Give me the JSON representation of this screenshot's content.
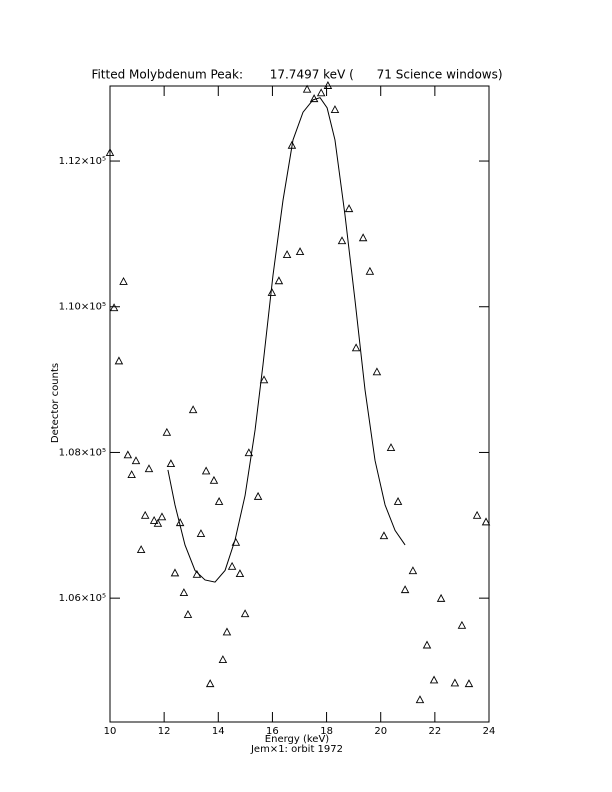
{
  "chart_data": {
    "type": "scatter",
    "title": "Fitted Molybdenum Peak:       17.7497 keV (      71 Science windows)",
    "x_label": "Energy (keV)",
    "y_label": "Detector counts",
    "subtitle": "Jem×1: orbit 1972",
    "xlim": [
      10,
      24
    ],
    "xticks": [
      10,
      12,
      14,
      16,
      18,
      20,
      22,
      24
    ],
    "ylim": [
      104300,
      113030
    ],
    "yticks": [
      {
        "value": 106000,
        "label": "1.06×10⁵"
      },
      {
        "value": 108000,
        "label": "1.08×10⁵"
      },
      {
        "value": 110000,
        "label": "1.10×10⁵"
      },
      {
        "value": 112000,
        "label": "1.12×10⁵"
      }
    ],
    "series": [
      {
        "color": "#000000",
        "marker": "triangle",
        "x": [
          10.0,
          10.15,
          10.33,
          10.5,
          10.66,
          10.8,
          10.96,
          11.15,
          11.3,
          11.44,
          11.63,
          11.77,
          11.92,
          12.1,
          12.25,
          12.4,
          12.59,
          12.73,
          12.88,
          13.07,
          13.21,
          13.36,
          13.55,
          13.7,
          13.84,
          14.03,
          14.17,
          14.32,
          14.51,
          14.65,
          14.8,
          14.99,
          15.13,
          15.47,
          15.69,
          15.98,
          16.24,
          16.54,
          16.72,
          17.02,
          17.28,
          17.54,
          17.8,
          18.05,
          18.31,
          18.57,
          18.83,
          19.09,
          19.35,
          19.6,
          19.86,
          20.12,
          20.38,
          20.64,
          20.9,
          21.19,
          21.45,
          21.71,
          21.97,
          22.23,
          22.74,
          23.0,
          23.26,
          23.56,
          23.89
        ],
        "values": [
          112110,
          109980,
          109250,
          110340,
          107960,
          107690,
          107880,
          106660,
          107130,
          107770,
          107060,
          107020,
          107110,
          108270,
          107840,
          106340,
          107030,
          106070,
          105770,
          108580,
          106320,
          106880,
          107740,
          104820,
          107610,
          107320,
          105150,
          105530,
          106430,
          106760,
          106330,
          105780,
          107990,
          107390,
          108990,
          110190,
          110350,
          110710,
          112210,
          110750,
          112980,
          112850,
          112930,
          113030,
          112700,
          110900,
          111340,
          109430,
          110940,
          110480,
          109100,
          106850,
          108060,
          107320,
          106110,
          106370,
          104600,
          105350,
          104870,
          105990,
          104830,
          105620,
          104820,
          107130,
          107040
        ]
      },
      {
        "color": "#000000",
        "marker": "line",
        "x": [
          12.14,
          12.4,
          12.77,
          13.14,
          13.51,
          13.88,
          14.25,
          14.62,
          14.99,
          15.36,
          15.65,
          16.02,
          16.39,
          16.76,
          17.13,
          17.5,
          17.76,
          18.02,
          18.31,
          18.68,
          19.05,
          19.42,
          19.79,
          20.16,
          20.53,
          20.9
        ],
        "values": [
          107760,
          107280,
          106730,
          106380,
          106250,
          106220,
          106380,
          106800,
          107410,
          108310,
          109200,
          110430,
          111460,
          112290,
          112670,
          112840,
          112870,
          112730,
          112290,
          111260,
          110090,
          108860,
          107890,
          107280,
          106930,
          106730
        ]
      }
    ]
  }
}
